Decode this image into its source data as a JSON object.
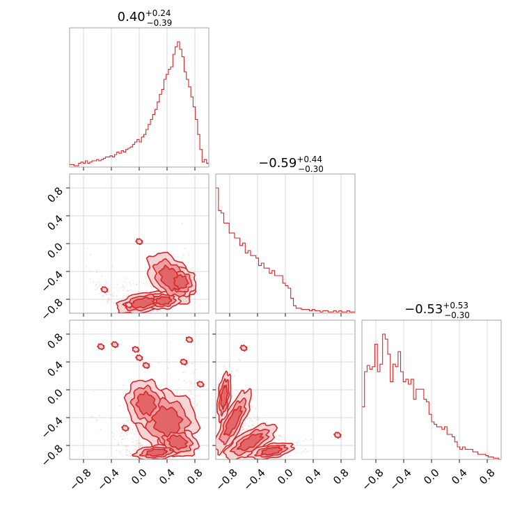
{
  "colors": {
    "main": "#d62728",
    "fill_levels": [
      "#f7d4d5",
      "#ee9fa1",
      "#e06668"
    ],
    "scatter": "#f2b8ba",
    "grid": "#cfcfcf",
    "frame": "#8c8c8c"
  },
  "chart_data": {
    "type": "corner",
    "grid": true,
    "num_params": 3,
    "axis_range": [
      -1.0,
      1.0
    ],
    "ticks": [
      -0.8,
      -0.4,
      0.0,
      0.4,
      0.8
    ],
    "tick_labels": [
      "−0.8",
      "−0.4",
      "0.0",
      "0.4",
      "0.8"
    ],
    "titles": [
      {
        "median": "0.40",
        "plus": "+0.24",
        "minus": "−0.39"
      },
      {
        "median": "−0.59",
        "plus": "+0.44",
        "minus": "−0.30"
      },
      {
        "median": "−0.53",
        "plus": "+0.53",
        "minus": "−0.30"
      }
    ],
    "histograms": [
      {
        "edges": [
          -1.0,
          1.0
        ],
        "counts": [
          2,
          2,
          1,
          1,
          3,
          4,
          3,
          5,
          3,
          4,
          5,
          5,
          6,
          5,
          6,
          7,
          8,
          8,
          9,
          8,
          10,
          12,
          11,
          13,
          12,
          14,
          15,
          16,
          18,
          20,
          22,
          20,
          24,
          26,
          30,
          34,
          38,
          42,
          46,
          52,
          58,
          62,
          70,
          74,
          78,
          80,
          90,
          96,
          100,
          94,
          88,
          76,
          70,
          64,
          56,
          48,
          38,
          26,
          14,
          4,
          6,
          3
        ]
      },
      {
        "edges": [
          -1.0,
          1.0
        ],
        "counts": [
          100,
          82,
          80,
          72,
          72,
          64,
          64,
          60,
          60,
          54,
          56,
          48,
          50,
          46,
          46,
          44,
          38,
          40,
          36,
          36,
          32,
          34,
          30,
          30,
          30,
          24,
          22,
          20,
          12,
          6,
          4,
          4,
          3,
          3,
          3,
          2,
          3,
          2,
          2,
          1,
          2,
          2,
          1,
          1,
          2,
          1,
          2,
          1,
          1,
          2,
          1,
          1
        ]
      },
      {
        "edges": [
          -1.0,
          1.0
        ],
        "counts": [
          42,
          70,
          75,
          72,
          74,
          92,
          70,
          76,
          100,
          96,
          84,
          62,
          76,
          74,
          86,
          70,
          62,
          64,
          60,
          64,
          48,
          56,
          56,
          56,
          48,
          46,
          36,
          30,
          28,
          26,
          26,
          24,
          26,
          20,
          20,
          18,
          14,
          10,
          8,
          10,
          8,
          8,
          8,
          6,
          6,
          4,
          4,
          4,
          3,
          2,
          2,
          1,
          1,
          0
        ]
      }
    ],
    "pairs": [
      {
        "x_param": 0,
        "y_param": 1
      },
      {
        "x_param": 0,
        "y_param": 2
      },
      {
        "x_param": 1,
        "y_param": 2
      }
    ]
  }
}
